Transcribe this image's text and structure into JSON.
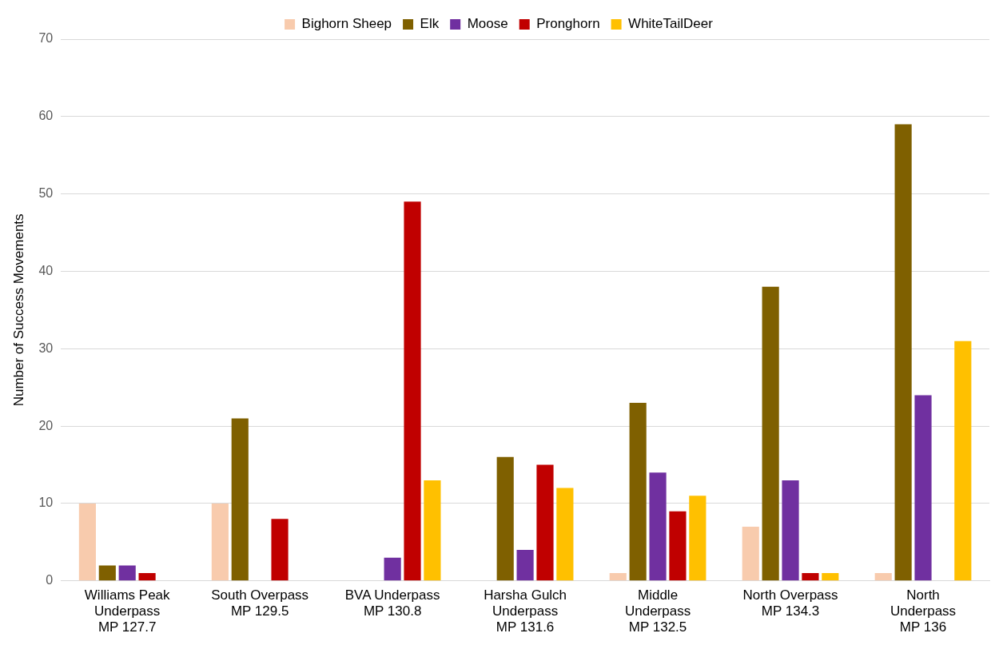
{
  "chart_data": {
    "type": "bar",
    "ylabel": "Number of Success Movements",
    "categories": [
      "Williams Peak\nUnderpass\nMP 127.7",
      "South Overpass\nMP 129.5",
      "BVA Underpass\nMP 130.8",
      "Harsha Gulch\nUnderpass\nMP 131.6",
      "Middle\nUnderpass\nMP 132.5",
      "North Overpass\nMP 134.3",
      "North\nUnderpass\nMP 136"
    ],
    "series": [
      {
        "name": "Bighorn Sheep",
        "color": "#f8cbad",
        "values": [
          10,
          10,
          0,
          0,
          1,
          7,
          1
        ]
      },
      {
        "name": "Elk",
        "color": "#7f6000",
        "values": [
          2,
          21,
          0,
          16,
          23,
          38,
          59
        ]
      },
      {
        "name": "Moose",
        "color": "#7030a0",
        "values": [
          2,
          0,
          3,
          4,
          14,
          13,
          24
        ]
      },
      {
        "name": "Pronghorn",
        "color": "#c00000",
        "values": [
          1,
          8,
          49,
          15,
          9,
          1,
          0
        ]
      },
      {
        "name": "WhiteTailDeer",
        "color": "#ffc000",
        "values": [
          0,
          0,
          13,
          12,
          11,
          1,
          31
        ]
      }
    ],
    "ylim": [
      0,
      70
    ],
    "yticks": [
      0,
      10,
      20,
      30,
      40,
      50,
      60,
      70
    ],
    "grid": "y",
    "legend": "top"
  }
}
